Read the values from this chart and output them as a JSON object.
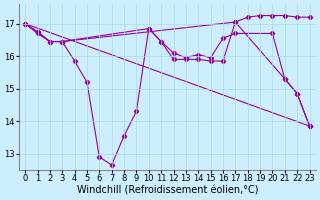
{
  "background_color": "#cceeff",
  "line_color": "#990099",
  "grid_color": "#aadddd",
  "xlabel": "Windchill (Refroidissement éolien,°C)",
  "xlabel_fontsize": 7.0,
  "tick_fontsize": 6.0,
  "ylim": [
    12.5,
    17.6
  ],
  "xlim": [
    -0.5,
    23.5
  ],
  "yticks": [
    13,
    14,
    15,
    16,
    17
  ],
  "xticks": [
    0,
    1,
    2,
    3,
    4,
    5,
    6,
    7,
    8,
    9,
    10,
    11,
    12,
    13,
    14,
    15,
    16,
    17,
    18,
    19,
    20,
    21,
    22,
    23
  ],
  "line1_x": [
    0,
    1,
    2,
    3,
    17,
    18,
    19,
    20,
    21,
    22,
    23
  ],
  "line1_y": [
    17.0,
    16.7,
    16.45,
    16.45,
    17.05,
    17.2,
    17.25,
    17.25,
    17.25,
    17.2,
    17.2
  ],
  "line2_x": [
    0,
    1,
    2,
    3,
    10,
    11,
    12,
    13,
    14,
    15,
    16,
    17,
    20,
    21,
    22,
    23
  ],
  "line2_y": [
    17.0,
    16.75,
    16.45,
    16.45,
    16.85,
    16.45,
    16.1,
    15.95,
    16.05,
    15.95,
    16.55,
    16.7,
    16.7,
    15.3,
    14.85,
    13.85
  ],
  "line3_x": [
    0,
    1,
    2,
    3,
    4,
    5,
    6,
    7,
    8,
    9,
    10,
    11,
    12,
    13,
    14,
    15,
    16,
    17,
    21,
    22,
    23
  ],
  "line3_y": [
    17.0,
    16.75,
    16.45,
    16.45,
    15.85,
    15.2,
    12.9,
    12.65,
    13.55,
    14.3,
    16.85,
    16.45,
    15.9,
    15.9,
    15.9,
    15.85,
    15.85,
    17.05,
    15.3,
    14.85,
    13.85
  ],
  "line4_x": [
    0,
    23
  ],
  "line4_y": [
    17.0,
    13.85
  ]
}
